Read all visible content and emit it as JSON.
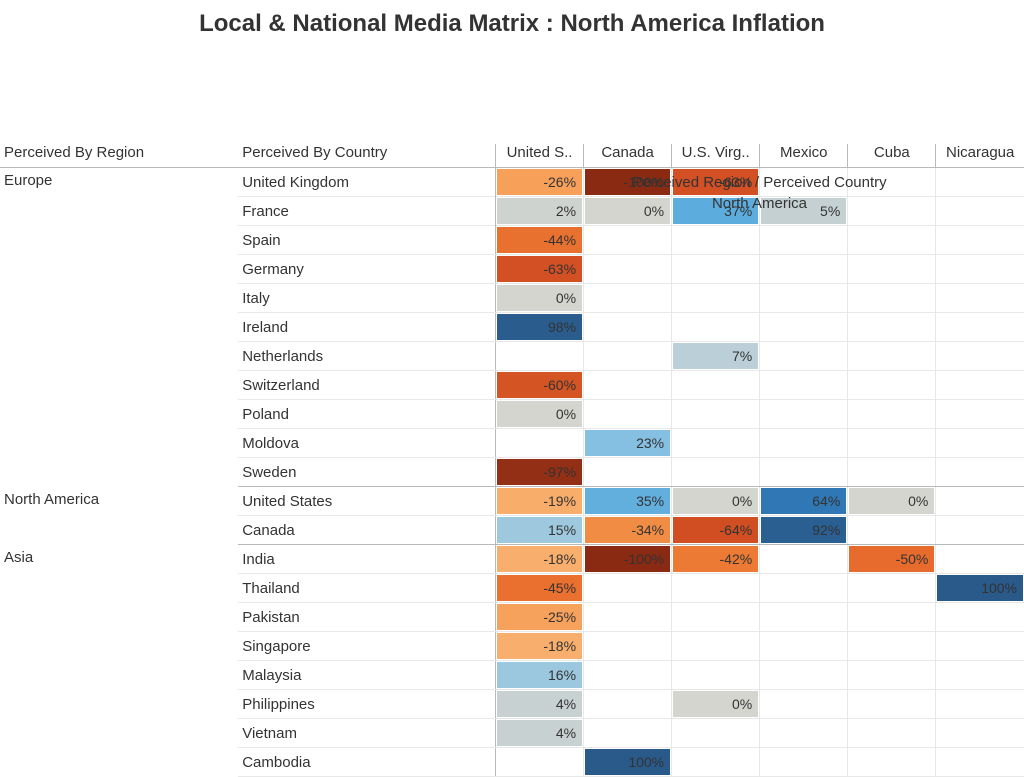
{
  "title": "Local & National Media Matrix  : North America Inflation",
  "super_header_line1": "Perceived Region / Perceived Country",
  "super_header_line2": "North America",
  "row_headers": {
    "region": "Perceived By Region",
    "country": "Perceived By Country"
  },
  "col_headers": [
    "United S..",
    "Canada",
    "U.S. Virg..",
    "Mexico",
    "Cuba",
    "Nicaragua"
  ],
  "typography": {
    "title_fontsize": 24,
    "header_fontsize": 15,
    "cell_fontsize": 14,
    "font_family": "Arial"
  },
  "grid_color": "#b9b9b9",
  "subgrid_color": "#e8e8e8",
  "background_color": "#ffffff",
  "color_scale": {
    "type": "diverging",
    "domain": [
      -100,
      0,
      100
    ],
    "range": [
      "#8b2a12",
      "#d5d5d0",
      "#2a5c8d"
    ]
  },
  "colors": {
    "neg100": "#8b2a12",
    "neg97": "#922f14",
    "neg64": "#d04e21",
    "neg63": "#d25023",
    "neg60": "#d45424",
    "neg50": "#e86b2e",
    "neg45": "#e9702f",
    "neg44": "#e97130",
    "neg42": "#ec7a35",
    "neg34": "#f18c45",
    "neg26": "#f6a05a",
    "neg25": "#f6a25c",
    "neg19": "#f8ad6b",
    "neg18": "#f8af6e",
    "zero": "#d5d5d0",
    "pos2": "#cfd3cf",
    "pos4": "#c8d1d1",
    "pos5": "#c4d0d2",
    "pos7": "#bacfd7",
    "pos15": "#9ec8de",
    "pos16": "#9bc7df",
    "pos23": "#85bfe2",
    "pos35": "#62afde",
    "pos37": "#5cacdd",
    "pos64": "#2f78b5",
    "pos92": "#2a5f92",
    "pos98": "#2a5c8d",
    "pos100": "#295a8a"
  },
  "groups": [
    {
      "region": "Europe",
      "rows": [
        {
          "country": "United Kingdom",
          "cells": [
            {
              "v": "-26%",
              "c": "neg26"
            },
            {
              "v": "-100%",
              "c": "neg100"
            },
            {
              "v": "-63%",
              "c": "neg63"
            },
            null,
            null,
            null
          ]
        },
        {
          "country": "France",
          "cells": [
            {
              "v": "2%",
              "c": "pos2"
            },
            {
              "v": "0%",
              "c": "zero"
            },
            {
              "v": "37%",
              "c": "pos37"
            },
            {
              "v": "5%",
              "c": "pos5"
            },
            null,
            null
          ]
        },
        {
          "country": "Spain",
          "cells": [
            {
              "v": "-44%",
              "c": "neg44"
            },
            null,
            null,
            null,
            null,
            null
          ]
        },
        {
          "country": "Germany",
          "cells": [
            {
              "v": "-63%",
              "c": "neg63"
            },
            null,
            null,
            null,
            null,
            null
          ]
        },
        {
          "country": "Italy",
          "cells": [
            {
              "v": "0%",
              "c": "zero"
            },
            null,
            null,
            null,
            null,
            null
          ]
        },
        {
          "country": "Ireland",
          "cells": [
            {
              "v": "98%",
              "c": "pos98"
            },
            null,
            null,
            null,
            null,
            null
          ]
        },
        {
          "country": "Netherlands",
          "cells": [
            null,
            null,
            {
              "v": "7%",
              "c": "pos7"
            },
            null,
            null,
            null
          ]
        },
        {
          "country": "Switzerland",
          "cells": [
            {
              "v": "-60%",
              "c": "neg60"
            },
            null,
            null,
            null,
            null,
            null
          ]
        },
        {
          "country": "Poland",
          "cells": [
            {
              "v": "0%",
              "c": "zero"
            },
            null,
            null,
            null,
            null,
            null
          ]
        },
        {
          "country": "Moldova",
          "cells": [
            null,
            {
              "v": "23%",
              "c": "pos23"
            },
            null,
            null,
            null,
            null
          ]
        },
        {
          "country": "Sweden",
          "cells": [
            {
              "v": "-97%",
              "c": "neg97"
            },
            null,
            null,
            null,
            null,
            null
          ]
        }
      ]
    },
    {
      "region": "North America",
      "rows": [
        {
          "country": "United States",
          "cells": [
            {
              "v": "-19%",
              "c": "neg19"
            },
            {
              "v": "35%",
              "c": "pos35"
            },
            {
              "v": "0%",
              "c": "zero"
            },
            {
              "v": "64%",
              "c": "pos64"
            },
            {
              "v": "0%",
              "c": "zero"
            },
            null
          ]
        },
        {
          "country": "Canada",
          "cells": [
            {
              "v": "15%",
              "c": "pos15"
            },
            {
              "v": "-34%",
              "c": "neg34"
            },
            {
              "v": "-64%",
              "c": "neg64"
            },
            {
              "v": "92%",
              "c": "pos92"
            },
            null,
            null
          ]
        }
      ]
    },
    {
      "region": "Asia",
      "rows": [
        {
          "country": "India",
          "cells": [
            {
              "v": "-18%",
              "c": "neg18"
            },
            {
              "v": "-100%",
              "c": "neg100"
            },
            {
              "v": "-42%",
              "c": "neg42"
            },
            null,
            {
              "v": "-50%",
              "c": "neg50"
            },
            null
          ]
        },
        {
          "country": "Thailand",
          "cells": [
            {
              "v": "-45%",
              "c": "neg45"
            },
            null,
            null,
            null,
            null,
            {
              "v": "100%",
              "c": "pos100"
            }
          ]
        },
        {
          "country": "Pakistan",
          "cells": [
            {
              "v": "-25%",
              "c": "neg25"
            },
            null,
            null,
            null,
            null,
            null
          ]
        },
        {
          "country": "Singapore",
          "cells": [
            {
              "v": "-18%",
              "c": "neg18"
            },
            null,
            null,
            null,
            null,
            null
          ]
        },
        {
          "country": "Malaysia",
          "cells": [
            {
              "v": "16%",
              "c": "pos16"
            },
            null,
            null,
            null,
            null,
            null
          ]
        },
        {
          "country": "Philippines",
          "cells": [
            {
              "v": "4%",
              "c": "pos4"
            },
            null,
            {
              "v": "0%",
              "c": "zero"
            },
            null,
            null,
            null
          ]
        },
        {
          "country": "Vietnam",
          "cells": [
            {
              "v": "4%",
              "c": "pos4"
            },
            null,
            null,
            null,
            null,
            null
          ]
        },
        {
          "country": "Cambodia",
          "cells": [
            null,
            {
              "v": "100%",
              "c": "pos100"
            },
            null,
            null,
            null,
            null
          ]
        }
      ]
    }
  ]
}
